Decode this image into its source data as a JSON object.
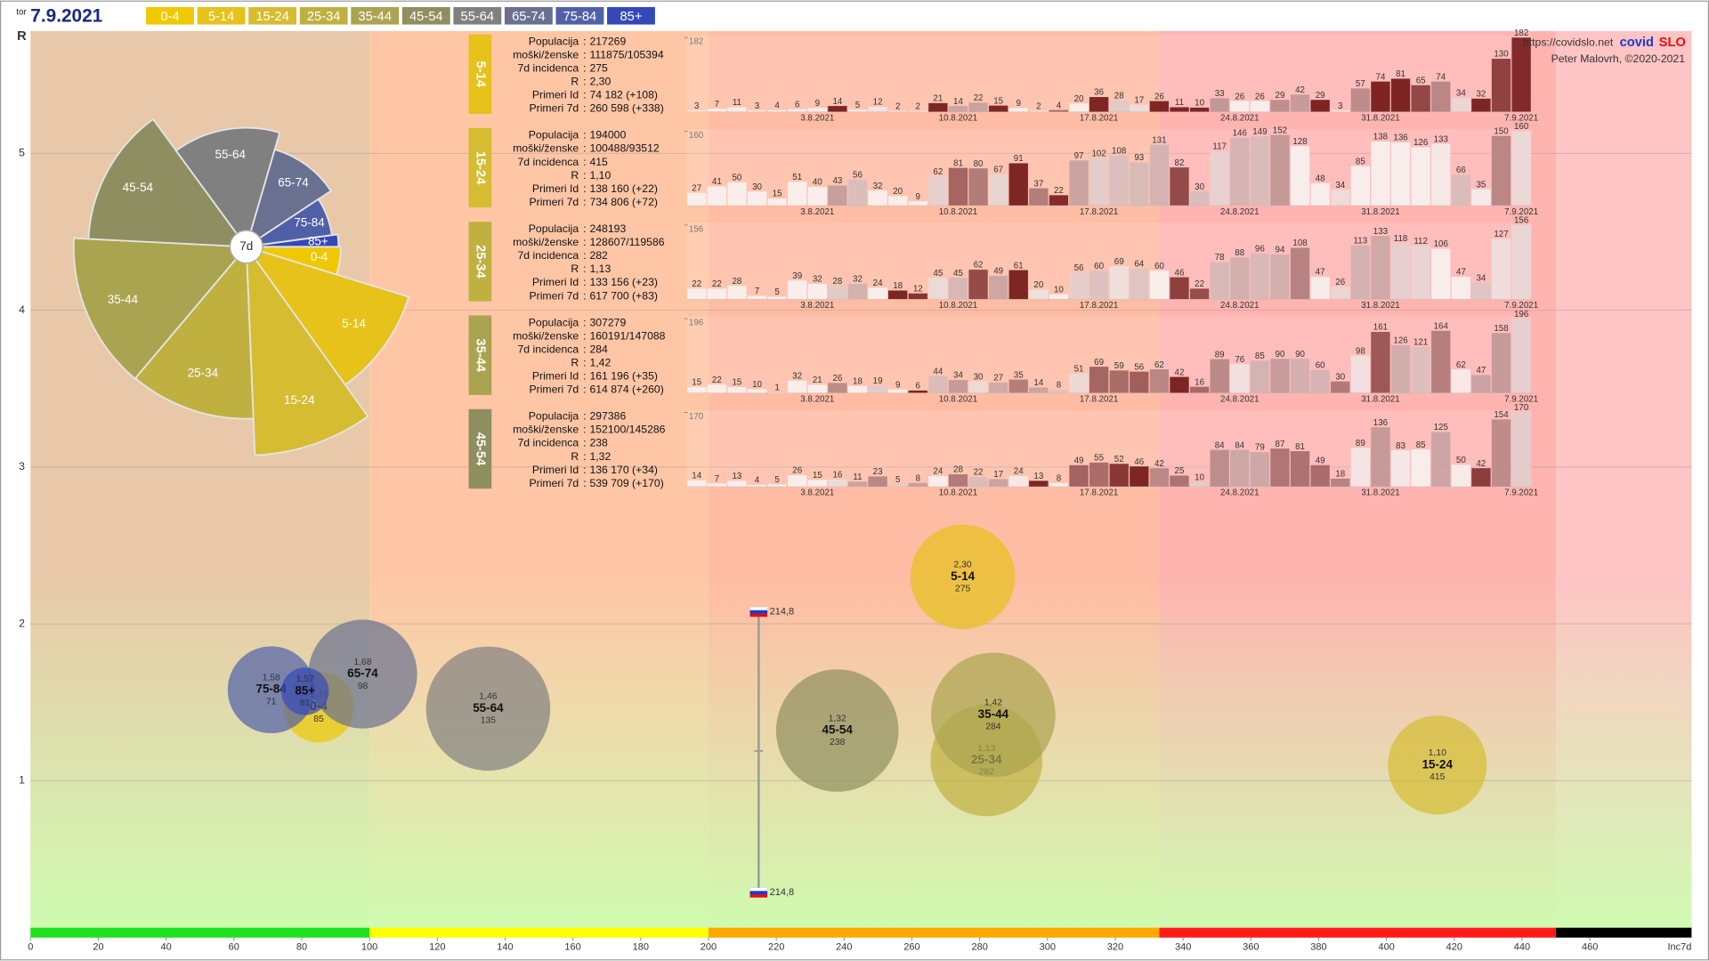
{
  "header": {
    "day": "tor",
    "date": "7.9.2021",
    "url": "https://covidslo.net",
    "brand_a": "covid",
    "brand_b": "SLO",
    "author": "Peter Malovrh, ©2020-2021"
  },
  "chart_data": [
    {
      "type": "bubble",
      "x_label": "Inc7d",
      "y_label": "R",
      "xlim": [
        0,
        490
      ],
      "ylim": [
        0,
        5.78
      ],
      "xticks": [
        0,
        20,
        40,
        60,
        80,
        100,
        120,
        140,
        160,
        180,
        200,
        220,
        240,
        260,
        280,
        300,
        320,
        340,
        360,
        380,
        400,
        420,
        440,
        460
      ],
      "yticks": [
        1,
        2,
        3,
        4,
        5
      ],
      "grid": true,
      "zones": [
        {
          "from": 0,
          "to": 100,
          "color": "#1ee01e",
          "bg": "#e8c8a8"
        },
        {
          "from": 100,
          "to": 200,
          "color": "#ffff00",
          "bg": "#ffc6a6"
        },
        {
          "from": 200,
          "to": 333,
          "color": "#ffa800",
          "bg": "#ffbca4"
        },
        {
          "from": 333,
          "to": 450,
          "color": "#ff1a1a",
          "bg": "#ffb4b0"
        },
        {
          "from": 450,
          "to": 490,
          "color": "#000000",
          "bg": "#ffc4c4"
        }
      ],
      "reference": {
        "x": 214.8,
        "label": "214,8",
        "r_top": 2.08,
        "r_mid": 1.19,
        "r_bottom": 0.29
      },
      "points": [
        {
          "name": "0-4",
          "color": "#f0c800",
          "x": 85,
          "y": 1.47,
          "y_label": "1,47",
          "size": 100000
        },
        {
          "name": "5-14",
          "color": "#e6c21a",
          "x": 275,
          "y": 2.3,
          "y_label": "2,30",
          "size": 217269
        },
        {
          "name": "15-24",
          "color": "#d6bc30",
          "x": 415,
          "y": 1.1,
          "y_label": "1,10",
          "size": 194000
        },
        {
          "name": "25-34",
          "color": "#c0b040",
          "x": 282,
          "y": 1.13,
          "y_label": "1,13",
          "size": 248193
        },
        {
          "name": "35-44",
          "color": "#aaa450",
          "x": 284,
          "y": 1.42,
          "y_label": "1,42",
          "size": 307279
        },
        {
          "name": "45-54",
          "color": "#8e8e60",
          "x": 238,
          "y": 1.32,
          "y_label": "1,32",
          "size": 297386
        },
        {
          "name": "55-64",
          "color": "#808080",
          "x": 135,
          "y": 1.46,
          "y_label": "1,46",
          "size": 306000
        },
        {
          "name": "65-74",
          "color": "#6a7090",
          "x": 98,
          "y": 1.68,
          "y_label": "1,68",
          "size": 235000
        },
        {
          "name": "75-84",
          "color": "#5060a8",
          "x": 71,
          "y": 1.58,
          "y_label": "1,58",
          "size": 150000
        },
        {
          "name": "85+",
          "color": "#3448b8",
          "x": 81,
          "y": 1.57,
          "y_label": "1,57",
          "size": 45000
        }
      ]
    },
    {
      "type": "rose",
      "center_label": "7d"
    },
    {
      "type": "bar",
      "title": "5-14",
      "color": "#e6c21a",
      "separator": ":",
      "stats": [
        {
          "label": "Populacija",
          "value": "217269"
        },
        {
          "label": "moški/ženske",
          "value": "111875/105394"
        },
        {
          "label": "7d incidenca",
          "value": "275"
        },
        {
          "label": "R",
          "value": "2,30"
        },
        {
          "label": "Primeri Id",
          "value": "74 182 (+108)"
        },
        {
          "label": "Primeri 7d",
          "value": "260 598 (+338)"
        }
      ],
      "categories": [
        null,
        null,
        null,
        null,
        null,
        null,
        "3.8.2021",
        null,
        null,
        null,
        null,
        null,
        null,
        "10.8.2021",
        null,
        null,
        null,
        null,
        null,
        null,
        "17.8.2021",
        null,
        null,
        null,
        null,
        null,
        null,
        "24.8.2021",
        null,
        null,
        null,
        null,
        null,
        null,
        "31.8.2021",
        null,
        null,
        null,
        null,
        null,
        null,
        "7.9.2021"
      ],
      "values": [
        3,
        7,
        11,
        3,
        4,
        6,
        9,
        14,
        5,
        12,
        2,
        2,
        21,
        14,
        22,
        15,
        9,
        2,
        4,
        20,
        36,
        28,
        17,
        26,
        11,
        10,
        33,
        26,
        26,
        29,
        42,
        29,
        3,
        57,
        74,
        81,
        65,
        74,
        34,
        32,
        130,
        182
      ],
      "ylim": [
        0,
        182
      ],
      "yticks": [
        182
      ]
    },
    {
      "type": "bar",
      "title": "15-24",
      "color": "#d6bc30",
      "separator": ":",
      "stats": [
        {
          "label": "Populacija",
          "value": "194000"
        },
        {
          "label": "moški/ženske",
          "value": "100488/93512"
        },
        {
          "label": "7d incidenca",
          "value": "415"
        },
        {
          "label": "R",
          "value": "1,10"
        },
        {
          "label": "Primeri Id",
          "value": "138 160 (+22)"
        },
        {
          "label": "Primeri 7d",
          "value": "734 806 (+72)"
        }
      ],
      "categories": [
        null,
        null,
        null,
        null,
        null,
        null,
        "3.8.2021",
        null,
        null,
        null,
        null,
        null,
        null,
        "10.8.2021",
        null,
        null,
        null,
        null,
        null,
        null,
        "17.8.2021",
        null,
        null,
        null,
        null,
        null,
        null,
        "24.8.2021",
        null,
        null,
        null,
        null,
        null,
        null,
        "31.8.2021",
        null,
        null,
        null,
        null,
        null,
        null,
        "7.9.2021"
      ],
      "values": [
        27,
        41,
        50,
        30,
        15,
        51,
        40,
        43,
        56,
        32,
        20,
        9,
        62,
        81,
        80,
        67,
        91,
        37,
        22,
        97,
        102,
        108,
        93,
        131,
        82,
        30,
        117,
        146,
        149,
        152,
        128,
        48,
        34,
        85,
        138,
        136,
        126,
        133,
        66,
        35,
        150,
        160
      ],
      "ylim": [
        0,
        160
      ],
      "yticks": [
        160
      ]
    },
    {
      "type": "bar",
      "title": "25-34",
      "color": "#c0b040",
      "separator": ":",
      "stats": [
        {
          "label": "Populacija",
          "value": "248193"
        },
        {
          "label": "moški/ženske",
          "value": "128607/119586"
        },
        {
          "label": "7d incidenca",
          "value": "282"
        },
        {
          "label": "R",
          "value": "1,13"
        },
        {
          "label": "Primeri Id",
          "value": "133 156 (+23)"
        },
        {
          "label": "Primeri 7d",
          "value": "617 700 (+83)"
        }
      ],
      "categories": [
        null,
        null,
        null,
        null,
        null,
        null,
        "3.8.2021",
        null,
        null,
        null,
        null,
        null,
        null,
        "10.8.2021",
        null,
        null,
        null,
        null,
        null,
        null,
        "17.8.2021",
        null,
        null,
        null,
        null,
        null,
        null,
        "24.8.2021",
        null,
        null,
        null,
        null,
        null,
        null,
        "31.8.2021",
        null,
        null,
        null,
        null,
        null,
        null,
        "7.9.2021"
      ],
      "values": [
        22,
        22,
        28,
        7,
        5,
        39,
        32,
        28,
        32,
        24,
        18,
        12,
        45,
        45,
        62,
        49,
        61,
        20,
        10,
        56,
        60,
        69,
        64,
        60,
        46,
        22,
        78,
        88,
        96,
        94,
        108,
        47,
        26,
        113,
        133,
        118,
        112,
        106,
        47,
        34,
        127,
        156
      ],
      "ylim": [
        0,
        156
      ],
      "yticks": [
        156
      ]
    },
    {
      "type": "bar",
      "title": "35-44",
      "color": "#aaa450",
      "separator": ":",
      "stats": [
        {
          "label": "Populacija",
          "value": "307279"
        },
        {
          "label": "moški/ženske",
          "value": "160191/147088"
        },
        {
          "label": "7d incidenca",
          "value": "284"
        },
        {
          "label": "R",
          "value": "1,42"
        },
        {
          "label": "Primeri Id",
          "value": "161 196 (+35)"
        },
        {
          "label": "Primeri 7d",
          "value": "614 874 (+260)"
        }
      ],
      "categories": [
        null,
        null,
        null,
        null,
        null,
        null,
        "3.8.2021",
        null,
        null,
        null,
        null,
        null,
        null,
        "10.8.2021",
        null,
        null,
        null,
        null,
        null,
        null,
        "17.8.2021",
        null,
        null,
        null,
        null,
        null,
        null,
        "24.8.2021",
        null,
        null,
        null,
        null,
        null,
        null,
        "31.8.2021",
        null,
        null,
        null,
        null,
        null,
        null,
        "7.9.2021"
      ],
      "values": [
        15,
        22,
        15,
        10,
        1,
        32,
        21,
        26,
        18,
        19,
        9,
        6,
        44,
        34,
        30,
        27,
        35,
        14,
        8,
        51,
        69,
        59,
        56,
        62,
        42,
        16,
        89,
        76,
        85,
        90,
        90,
        60,
        30,
        98,
        161,
        126,
        121,
        164,
        62,
        47,
        158,
        196
      ],
      "ylim": [
        0,
        196
      ],
      "yticks": [
        196
      ]
    },
    {
      "type": "bar",
      "title": "45-54",
      "color": "#8e8e60",
      "separator": ":",
      "stats": [
        {
          "label": "Populacija",
          "value": "297386"
        },
        {
          "label": "moški/ženske",
          "value": "152100/145286"
        },
        {
          "label": "7d incidenca",
          "value": "238"
        },
        {
          "label": "R",
          "value": "1,32"
        },
        {
          "label": "Primeri Id",
          "value": "136 170 (+34)"
        },
        {
          "label": "Primeri 7d",
          "value": "539 709 (+170)"
        }
      ],
      "categories": [
        null,
        null,
        null,
        null,
        null,
        null,
        "3.8.2021",
        null,
        null,
        null,
        null,
        null,
        null,
        "10.8.2021",
        null,
        null,
        null,
        null,
        null,
        null,
        "17.8.2021",
        null,
        null,
        null,
        null,
        null,
        null,
        "24.8.2021",
        null,
        null,
        null,
        null,
        null,
        null,
        "31.8.2021",
        null,
        null,
        null,
        null,
        null,
        null,
        "7.9.2021"
      ],
      "values": [
        14,
        7,
        13,
        4,
        5,
        26,
        15,
        16,
        11,
        23,
        5,
        8,
        24,
        28,
        22,
        17,
        24,
        13,
        8,
        49,
        55,
        52,
        46,
        42,
        25,
        10,
        84,
        84,
        79,
        87,
        81,
        49,
        18,
        89,
        136,
        83,
        85,
        125,
        50,
        42,
        154,
        170
      ],
      "ylim": [
        0,
        170
      ],
      "yticks": [
        170
      ]
    }
  ]
}
